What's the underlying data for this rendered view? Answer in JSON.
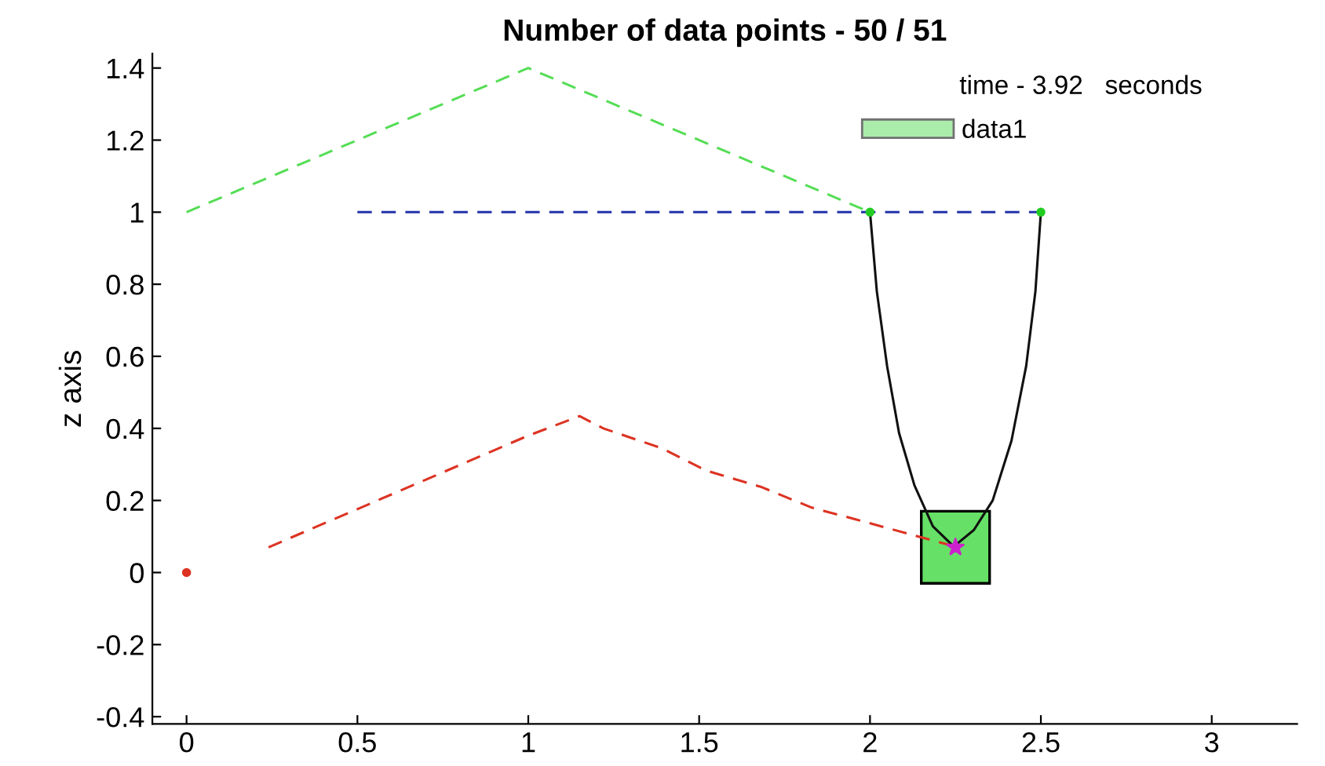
{
  "chart_data": {
    "type": "line",
    "title": "Number of data points - 50 / 51",
    "ylabel": "z axis",
    "annotations": [
      "time - 3.92   seconds"
    ],
    "xlim": [
      -0.1,
      3.25
    ],
    "ylim": [
      -0.42,
      1.44
    ],
    "xticks": [
      0,
      0.5,
      1,
      1.5,
      2,
      2.5,
      3
    ],
    "yticks": [
      -0.4,
      -0.2,
      0,
      0.2,
      0.4,
      0.6,
      0.8,
      1,
      1.2,
      1.4
    ],
    "grid": false,
    "legend": "top right",
    "series": [
      {
        "type": "area",
        "name": "data1",
        "color": "#66e066",
        "x": [
          2.15,
          2.35,
          2.35,
          2.15
        ],
        "values": [
          -0.03,
          -0.03,
          0.17,
          0.17
        ]
      },
      {
        "color": "#55dd55",
        "line_style": "dashed",
        "marker": "none",
        "x": [
          0,
          1,
          2
        ],
        "values": [
          1,
          1.4,
          1
        ]
      },
      {
        "color": "#2233aa",
        "line_style": "dashed",
        "marker": "none",
        "x": [
          0.5,
          2.5
        ],
        "values": [
          1,
          1
        ]
      },
      {
        "color": "#111111",
        "line_style": "solid",
        "marker": "none",
        "x": [
          2.0,
          2.02,
          2.05,
          2.085,
          2.13,
          2.184,
          2.245,
          2.304,
          2.359,
          2.414,
          2.457,
          2.484,
          2.5
        ],
        "values": [
          1.0,
          0.78,
          0.573,
          0.387,
          0.242,
          0.128,
          0.072,
          0.118,
          0.2,
          0.366,
          0.573,
          0.78,
          1.0
        ]
      },
      {
        "color": "#dd3322",
        "line_style": "dashed",
        "marker": "none",
        "x": [
          0.24,
          1.0,
          1.15,
          1.22,
          1.39,
          1.52,
          1.68,
          1.83,
          1.96,
          2.18,
          2.25
        ],
        "values": [
          0.07,
          0.38,
          0.434,
          0.4,
          0.345,
          0.283,
          0.238,
          0.18,
          0.147,
          0.09,
          0.072
        ]
      },
      {
        "type": "scatter",
        "color": "#dd3322",
        "marker": "circle",
        "x": [
          0
        ],
        "values": [
          0
        ]
      },
      {
        "type": "scatter",
        "color": "#22cc22",
        "marker": "circle",
        "x": [
          2,
          2.5
        ],
        "values": [
          1,
          1
        ]
      },
      {
        "type": "scatter",
        "color": "#cc22cc",
        "marker": "star",
        "x": [
          2.25
        ],
        "values": [
          0.07
        ]
      }
    ]
  }
}
